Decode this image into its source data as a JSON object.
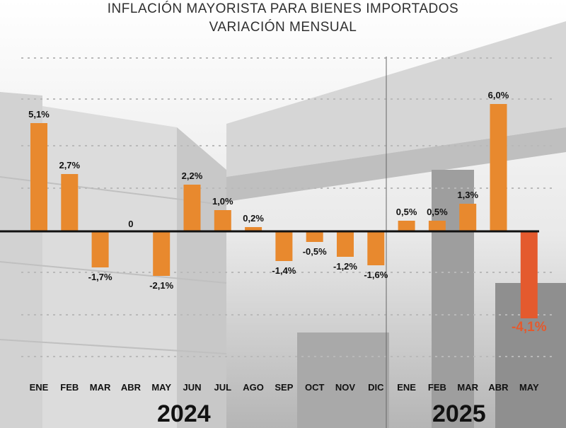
{
  "title": "INFLACIÓN MAYORISTA PARA BIENES IMPORTADOS",
  "subtitle": "VARIACIÓN MENSUAL",
  "colors": {
    "bar_positive": "#e8892e",
    "bar_highlight": "#e45a2e",
    "value_label": "#111111",
    "highlight_label": "#e45a2e",
    "zero_line": "#111111",
    "grid": "#b9b9b9"
  },
  "chart_data": {
    "type": "bar",
    "title": "INFLACIÓN MAYORISTA PARA BIENES IMPORTADOS",
    "subtitle": "VARIACIÓN MENSUAL",
    "xlabel": "",
    "ylabel": "",
    "ylim": [
      -4.6,
      6.9
    ],
    "grid": true,
    "groups": [
      {
        "label": "2024",
        "categories": [
          "ENE",
          "FEB",
          "MAR",
          "ABR",
          "MAY",
          "JUN",
          "JUL",
          "AGO",
          "SEP",
          "OCT",
          "NOV",
          "DIC"
        ]
      },
      {
        "label": "2025",
        "categories": [
          "ENE",
          "FEB",
          "MAR",
          "ABR",
          "MAY"
        ]
      }
    ],
    "categories": [
      "ENE",
      "FEB",
      "MAR",
      "ABR",
      "MAY",
      "JUN",
      "JUL",
      "AGO",
      "SEP",
      "OCT",
      "NOV",
      "DIC",
      "ENE",
      "FEB",
      "MAR",
      "ABR",
      "MAY"
    ],
    "values": [
      5.1,
      2.7,
      -1.7,
      0,
      -2.1,
      2.2,
      1.0,
      0.2,
      -1.4,
      -0.5,
      -1.2,
      -1.6,
      0.5,
      0.5,
      1.3,
      6.0,
      -4.1
    ],
    "data_labels": [
      "5,1%",
      "2,7%",
      "-1,7%",
      "0",
      "-2,1%",
      "2,2%",
      "1,0%",
      "0,2%",
      "-1,4%",
      "-0,5%",
      "-1,2%",
      "-1,6%",
      "0,5%",
      "0,5%",
      "1,3%",
      "6,0%",
      "-4,1%"
    ],
    "highlight_index": 16
  }
}
